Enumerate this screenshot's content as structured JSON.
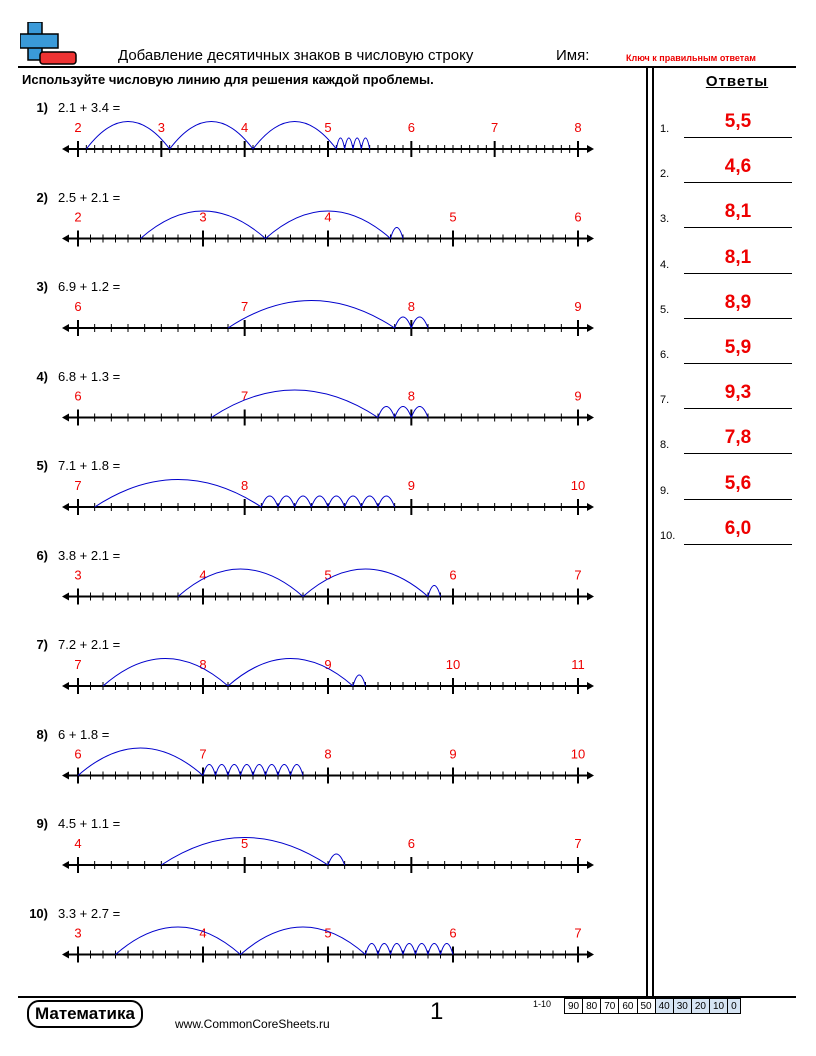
{
  "header": {
    "title": "Добавление десятичных знаков в числовую строку",
    "name_label": "Имя:",
    "answer_key": "Ключ к правильным ответам",
    "instructions": "Используйте числовую линию для решения каждой проблемы."
  },
  "answers_title": "Ответы",
  "problems": [
    {
      "num": "1)",
      "expr": "2.1 + 3.4 =",
      "labels": [
        "2",
        "3",
        "4",
        "5",
        "6",
        "7",
        "8"
      ]
    },
    {
      "num": "2)",
      "expr": "2.5 + 2.1 =",
      "labels": [
        "2",
        "3",
        "4",
        "5",
        "6"
      ]
    },
    {
      "num": "3)",
      "expr": "6.9 + 1.2 =",
      "labels": [
        "6",
        "7",
        "8",
        "9"
      ]
    },
    {
      "num": "4)",
      "expr": "6.8 + 1.3 =",
      "labels": [
        "6",
        "7",
        "8",
        "9"
      ]
    },
    {
      "num": "5)",
      "expr": "7.1 + 1.8 =",
      "labels": [
        "7",
        "8",
        "9",
        "10"
      ]
    },
    {
      "num": "6)",
      "expr": "3.8 + 2.1 =",
      "labels": [
        "3",
        "4",
        "5",
        "6",
        "7"
      ]
    },
    {
      "num": "7)",
      "expr": "7.2 + 2.1 =",
      "labels": [
        "7",
        "8",
        "9",
        "10",
        "11"
      ]
    },
    {
      "num": "8)",
      "expr": "6 + 1.8 =",
      "labels": [
        "6",
        "7",
        "8",
        "9",
        "10"
      ]
    },
    {
      "num": "9)",
      "expr": "4.5 + 1.1 =",
      "labels": [
        "4",
        "5",
        "6",
        "7"
      ]
    },
    {
      "num": "10)",
      "expr": "3.3 + 2.7 =",
      "labels": [
        "3",
        "4",
        "5",
        "6",
        "7"
      ]
    }
  ],
  "answers": [
    {
      "num": "1.",
      "value": "5,5"
    },
    {
      "num": "2.",
      "value": "4,6"
    },
    {
      "num": "3.",
      "value": "8,1"
    },
    {
      "num": "4.",
      "value": "8,1"
    },
    {
      "num": "5.",
      "value": "8,9"
    },
    {
      "num": "6.",
      "value": "5,9"
    },
    {
      "num": "7.",
      "value": "9,3"
    },
    {
      "num": "8.",
      "value": "7,8"
    },
    {
      "num": "9.",
      "value": "5,6"
    },
    {
      "num": "10.",
      "value": "6,0"
    }
  ],
  "footer": {
    "badge": "Математика",
    "url": "www.CommonCoreSheets.ru",
    "page": "1",
    "score_label": "1-10",
    "scores": [
      "90",
      "80",
      "70",
      "60",
      "50",
      "40",
      "30",
      "20",
      "10",
      "0"
    ]
  },
  "colors": {
    "accent_red": "#e00000",
    "arc_blue": "#0000cc",
    "score_blue": "#d6e4f3"
  }
}
